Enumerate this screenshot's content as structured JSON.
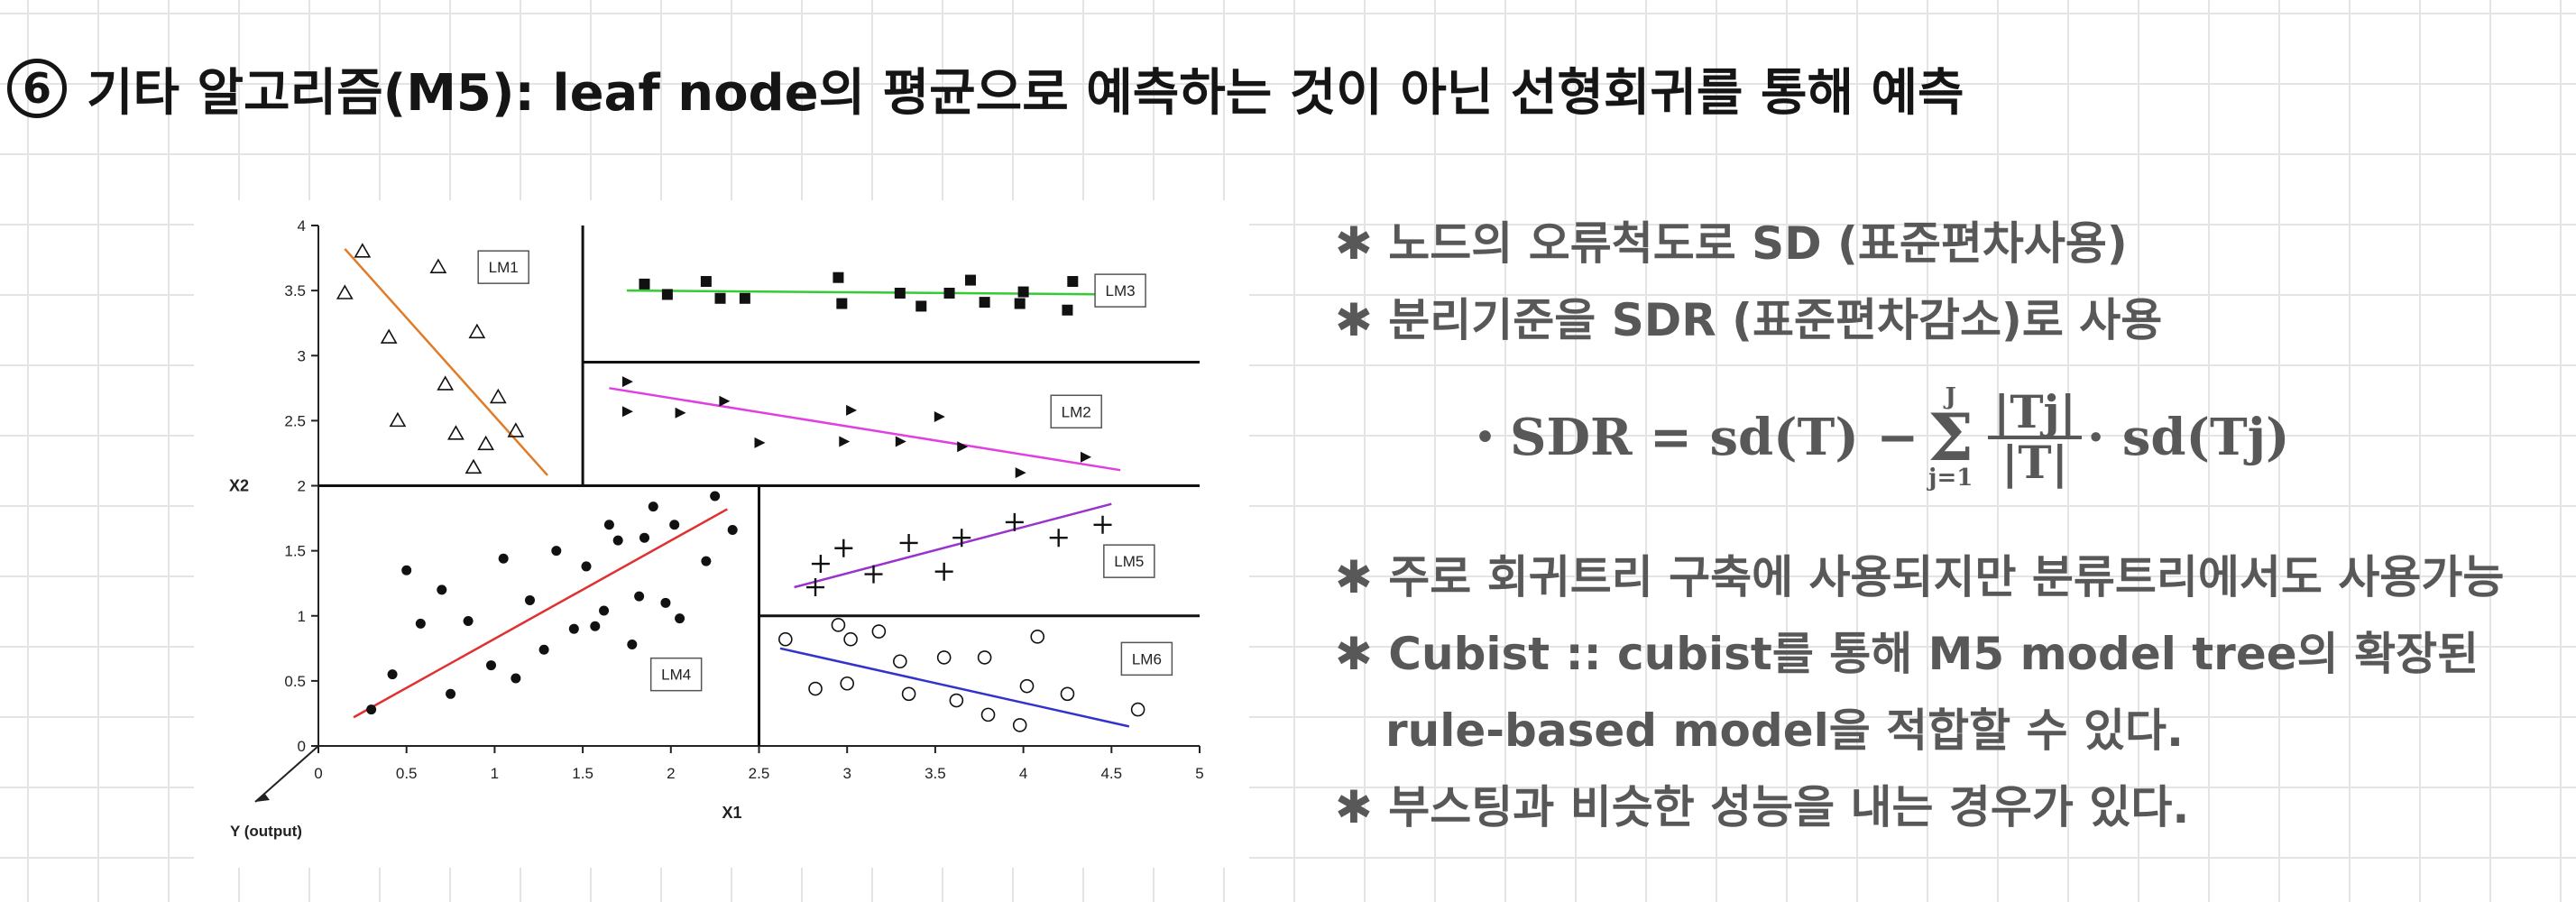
{
  "heading": {
    "number": "6",
    "text": "기타 알고리즘(M5): leaf node의 평균으로 예측하는 것이 아닌 선형회귀를 통해 예측"
  },
  "notes": {
    "lines": [
      "✱ 노드의 오류척도로  SD (표준편차사용)",
      "✱ 분리기준을  SDR (표준편차감소)로 사용",
      "✱ 주로 회귀트리 구축에 사용되지만 분류트리에서도 사용가능",
      "✱ Cubist :: cubist를 통해  M5 model tree의 확장된",
      "rule-based model을 적합할 수 있다.",
      "✱ 부스팅과 비슷한 성능을 내는 경우가 있다."
    ],
    "formula": {
      "bullet": "•",
      "lhs": "SDR = sd(T) −",
      "sum_top": "J",
      "sum_symbol": "Σ",
      "sum_bottom": "j=1",
      "frac_num": "|Tj|",
      "frac_den": "|T|",
      "rhs": "· sd(Tj)"
    }
  },
  "chart_data": {
    "type": "scatter",
    "xlabel": "X1",
    "ylabel": "X2",
    "zlabel": "Y (output)",
    "xlim": [
      0,
      5
    ],
    "ylim": [
      0,
      4
    ],
    "xticks": [
      "0",
      "0.5",
      "1",
      "1.5",
      "2",
      "2.5",
      "3",
      "3.5",
      "4",
      "4.5",
      "5"
    ],
    "yticks": [
      "0",
      "0.5",
      "1",
      "1.5",
      "2",
      "2.5",
      "3",
      "3.5",
      "4"
    ],
    "splits": [
      {
        "x1": 0,
        "y1": 2,
        "x2": 5,
        "y2": 2
      },
      {
        "x1": 1.5,
        "y1": 2,
        "x2": 1.5,
        "y2": 4
      },
      {
        "x1": 1.5,
        "y1": 2.95,
        "x2": 5,
        "y2": 2.95
      },
      {
        "x1": 2.5,
        "y1": 0,
        "x2": 2.5,
        "y2": 2
      },
      {
        "x1": 2.5,
        "y1": 1,
        "x2": 5,
        "y2": 1
      }
    ],
    "regions": [
      {
        "model": "LM1",
        "label_at": [
          1.05,
          3.68
        ],
        "marker": "triangle",
        "line_color": "#e07b28",
        "fit": {
          "x1": 0.15,
          "y1": 3.82,
          "x2": 1.3,
          "y2": 2.08
        },
        "points": [
          [
            0.15,
            3.48
          ],
          [
            0.25,
            3.8
          ],
          [
            0.4,
            3.14
          ],
          [
            0.45,
            2.5
          ],
          [
            0.68,
            3.68
          ],
          [
            0.72,
            2.78
          ],
          [
            0.78,
            2.4
          ],
          [
            0.88,
            2.14
          ],
          [
            0.9,
            3.18
          ],
          [
            0.95,
            2.32
          ],
          [
            1.02,
            2.68
          ],
          [
            1.12,
            2.42
          ]
        ]
      },
      {
        "model": "LM3",
        "label_at": [
          4.55,
          3.5
        ],
        "marker": "square",
        "line_color": "#33cc33",
        "fit": {
          "x1": 1.75,
          "y1": 3.5,
          "x2": 4.55,
          "y2": 3.47
        },
        "points": [
          [
            1.85,
            3.55
          ],
          [
            1.98,
            3.47
          ],
          [
            2.2,
            3.57
          ],
          [
            2.28,
            3.44
          ],
          [
            2.42,
            3.44
          ],
          [
            2.95,
            3.6
          ],
          [
            2.97,
            3.4
          ],
          [
            3.3,
            3.48
          ],
          [
            3.42,
            3.38
          ],
          [
            3.58,
            3.48
          ],
          [
            3.7,
            3.58
          ],
          [
            3.78,
            3.41
          ],
          [
            3.98,
            3.4
          ],
          [
            4.0,
            3.49
          ],
          [
            4.25,
            3.35
          ],
          [
            4.28,
            3.57
          ]
        ]
      },
      {
        "model": "LM2",
        "label_at": [
          4.3,
          2.57
        ],
        "marker": "triangle-right",
        "line_color": "#e040e0",
        "fit": {
          "x1": 1.65,
          "y1": 2.75,
          "x2": 4.55,
          "y2": 2.12
        },
        "points": [
          [
            1.75,
            2.8
          ],
          [
            1.75,
            2.57
          ],
          [
            2.05,
            2.56
          ],
          [
            2.3,
            2.65
          ],
          [
            2.5,
            2.33
          ],
          [
            2.98,
            2.34
          ],
          [
            3.02,
            2.58
          ],
          [
            3.3,
            2.34
          ],
          [
            3.52,
            2.53
          ],
          [
            3.65,
            2.3
          ],
          [
            3.98,
            2.1
          ],
          [
            4.35,
            2.22
          ]
        ]
      },
      {
        "model": "LM4",
        "label_at": [
          2.03,
          0.55
        ],
        "marker": "dot",
        "line_color": "#e03030",
        "fit": {
          "x1": 0.2,
          "y1": 0.22,
          "x2": 2.32,
          "y2": 1.82
        },
        "points": [
          [
            0.3,
            0.28
          ],
          [
            0.42,
            0.55
          ],
          [
            0.5,
            1.35
          ],
          [
            0.58,
            0.94
          ],
          [
            0.7,
            1.2
          ],
          [
            0.75,
            0.4
          ],
          [
            0.85,
            0.96
          ],
          [
            0.98,
            0.62
          ],
          [
            1.05,
            1.44
          ],
          [
            1.12,
            0.52
          ],
          [
            1.2,
            1.12
          ],
          [
            1.28,
            0.74
          ],
          [
            1.35,
            1.5
          ],
          [
            1.45,
            0.9
          ],
          [
            1.52,
            1.38
          ],
          [
            1.57,
            0.92
          ],
          [
            1.62,
            1.04
          ],
          [
            1.65,
            1.7
          ],
          [
            1.7,
            1.58
          ],
          [
            1.78,
            0.78
          ],
          [
            1.82,
            1.15
          ],
          [
            1.85,
            1.6
          ],
          [
            1.9,
            1.84
          ],
          [
            1.97,
            1.1
          ],
          [
            2.02,
            1.7
          ],
          [
            2.05,
            0.98
          ],
          [
            2.2,
            1.42
          ],
          [
            2.25,
            1.92
          ],
          [
            2.35,
            1.66
          ]
        ]
      },
      {
        "model": "LM5",
        "label_at": [
          4.6,
          1.42
        ],
        "marker": "plus",
        "line_color": "#9933cc",
        "fit": {
          "x1": 2.7,
          "y1": 1.22,
          "x2": 4.5,
          "y2": 1.86
        },
        "points": [
          [
            2.82,
            1.22
          ],
          [
            2.85,
            1.4
          ],
          [
            2.98,
            1.52
          ],
          [
            3.15,
            1.32
          ],
          [
            3.35,
            1.56
          ],
          [
            3.55,
            1.34
          ],
          [
            3.65,
            1.6
          ],
          [
            3.95,
            1.72
          ],
          [
            4.2,
            1.6
          ],
          [
            4.45,
            1.7
          ]
        ]
      },
      {
        "model": "LM6",
        "label_at": [
          4.7,
          0.67
        ],
        "marker": "circle",
        "line_color": "#3333cc",
        "fit": {
          "x1": 2.62,
          "y1": 0.75,
          "x2": 4.6,
          "y2": 0.15
        },
        "points": [
          [
            2.65,
            0.82
          ],
          [
            2.82,
            0.44
          ],
          [
            2.95,
            0.93
          ],
          [
            3.0,
            0.48
          ],
          [
            3.02,
            0.82
          ],
          [
            3.18,
            0.88
          ],
          [
            3.3,
            0.65
          ],
          [
            3.35,
            0.4
          ],
          [
            3.55,
            0.68
          ],
          [
            3.62,
            0.35
          ],
          [
            3.78,
            0.68
          ],
          [
            3.8,
            0.24
          ],
          [
            3.98,
            0.16
          ],
          [
            4.02,
            0.46
          ],
          [
            4.08,
            0.84
          ],
          [
            4.25,
            0.4
          ],
          [
            4.65,
            0.28
          ]
        ]
      }
    ]
  }
}
